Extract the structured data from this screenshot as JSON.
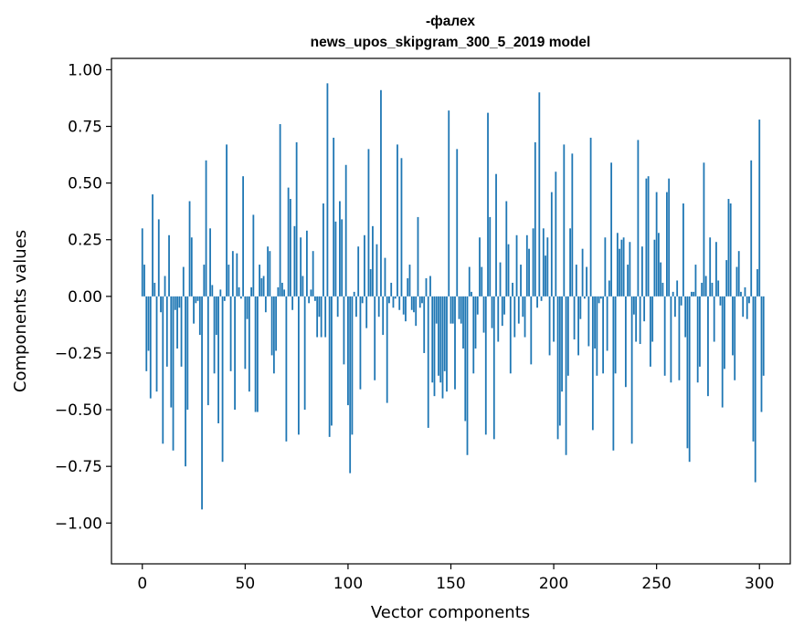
{
  "chart_data": {
    "type": "bar",
    "title": "-фалех",
    "subtitle": "news_upos_skipgram_300_5_2019 model",
    "xlabel": "Vector components",
    "ylabel": "Components values",
    "xlim": [
      -15,
      315
    ],
    "ylim": [
      -1.18,
      1.05
    ],
    "xticks": [
      0,
      50,
      100,
      150,
      200,
      250,
      300
    ],
    "xtick_labels": [
      "0",
      "50",
      "100",
      "150",
      "200",
      "250",
      "300"
    ],
    "yticks": [
      1.0,
      0.75,
      0.5,
      0.25,
      0.0,
      -0.25,
      -0.5,
      -0.75,
      -1.0
    ],
    "ytick_labels": [
      "1.00",
      "0.75",
      "0.50",
      "0.25",
      "0.00",
      "−0.25",
      "−0.50",
      "−0.75",
      "−1.00"
    ],
    "bar_color": "#1f77b4",
    "values": [
      0.3,
      0.14,
      -0.33,
      -0.24,
      -0.45,
      0.45,
      0.06,
      -0.42,
      0.34,
      -0.07,
      -0.65,
      0.09,
      -0.31,
      0.27,
      -0.49,
      -0.68,
      -0.06,
      -0.23,
      -0.05,
      -0.31,
      0.13,
      -0.75,
      -0.5,
      0.42,
      0.26,
      -0.12,
      -0.03,
      -0.02,
      -0.17,
      -0.94,
      0.14,
      0.6,
      -0.48,
      0.3,
      0.05,
      -0.34,
      -0.17,
      -0.56,
      0.03,
      -0.73,
      -0.02,
      0.67,
      0.14,
      -0.33,
      0.2,
      -0.5,
      0.19,
      0.04,
      -0.01,
      0.53,
      -0.32,
      -0.1,
      -0.42,
      0.04,
      0.36,
      -0.51,
      -0.51,
      0.14,
      0.08,
      0.09,
      -0.07,
      0.22,
      0.2,
      -0.26,
      -0.34,
      -0.24,
      0.04,
      0.76,
      0.06,
      0.03,
      -0.64,
      0.48,
      0.43,
      -0.06,
      0.31,
      0.68,
      -0.61,
      0.26,
      0.09,
      -0.5,
      0.29,
      -0.03,
      0.03,
      0.2,
      -0.02,
      -0.18,
      -0.09,
      -0.18,
      0.41,
      -0.18,
      0.94,
      -0.62,
      -0.57,
      0.7,
      0.33,
      -0.09,
      0.42,
      0.34,
      -0.3,
      0.58,
      -0.48,
      -0.78,
      -0.61,
      0.02,
      -0.09,
      0.22,
      -0.41,
      -0.03,
      0.27,
      -0.14,
      0.65,
      0.12,
      0.31,
      -0.37,
      0.23,
      -0.09,
      0.91,
      -0.17,
      0.17,
      -0.47,
      -0.03,
      0.06,
      -0.05,
      -0.01,
      0.67,
      -0.06,
      0.61,
      -0.08,
      -0.11,
      0.08,
      0.14,
      -0.06,
      -0.07,
      -0.13,
      0.35,
      -0.05,
      -0.03,
      -0.25,
      0.08,
      -0.58,
      0.09,
      -0.38,
      -0.44,
      -0.12,
      -0.35,
      -0.38,
      -0.45,
      -0.33,
      -0.42,
      0.82,
      -0.12,
      -0.12,
      -0.41,
      0.65,
      -0.1,
      -0.12,
      -0.23,
      -0.55,
      -0.7,
      0.13,
      0.02,
      -0.34,
      -0.23,
      -0.08,
      0.26,
      0.13,
      -0.16,
      -0.61,
      0.81,
      0.35,
      -0.14,
      -0.63,
      0.54,
      -0.2,
      0.15,
      -0.13,
      -0.08,
      0.42,
      0.23,
      -0.34,
      0.06,
      -0.18,
      0.27,
      -0.12,
      0.14,
      -0.09,
      -0.18,
      0.27,
      0.21,
      -0.3,
      0.3,
      0.68,
      -0.05,
      0.9,
      -0.02,
      0.3,
      0.18,
      0.26,
      -0.26,
      0.46,
      -0.2,
      0.55,
      -0.63,
      -0.57,
      -0.42,
      0.67,
      -0.7,
      -0.35,
      0.3,
      0.63,
      -0.19,
      0.14,
      -0.26,
      -0.1,
      0.21,
      -0.01,
      0.13,
      -0.22,
      0.7,
      -0.59,
      -0.23,
      -0.35,
      -0.03,
      -0.01,
      -0.34,
      0.26,
      -0.24,
      0.07,
      0.59,
      -0.68,
      -0.34,
      0.28,
      0.21,
      0.25,
      0.26,
      -0.4,
      0.14,
      0.24,
      -0.65,
      -0.08,
      -0.2,
      0.69,
      -0.21,
      0.22,
      -0.11,
      0.52,
      0.53,
      -0.31,
      -0.2,
      0.25,
      0.46,
      0.28,
      0.15,
      0.06,
      -0.35,
      0.46,
      0.52,
      -0.38,
      0.02,
      -0.09,
      0.07,
      -0.37,
      -0.04,
      0.41,
      -0.18,
      -0.67,
      -0.73,
      0.02,
      0.02,
      0.14,
      -0.38,
      -0.31,
      0.06,
      0.59,
      0.09,
      -0.44,
      0.26,
      0.06,
      -0.2,
      0.24,
      0.07,
      -0.04,
      -0.49,
      -0.32,
      0.16,
      0.43,
      0.41,
      -0.26,
      -0.37,
      0.13,
      0.2,
      0.02,
      -0.09,
      0.04,
      -0.1,
      -0.03,
      0.6,
      -0.64,
      -0.82,
      0.12,
      0.78,
      -0.51,
      -0.35
    ]
  }
}
